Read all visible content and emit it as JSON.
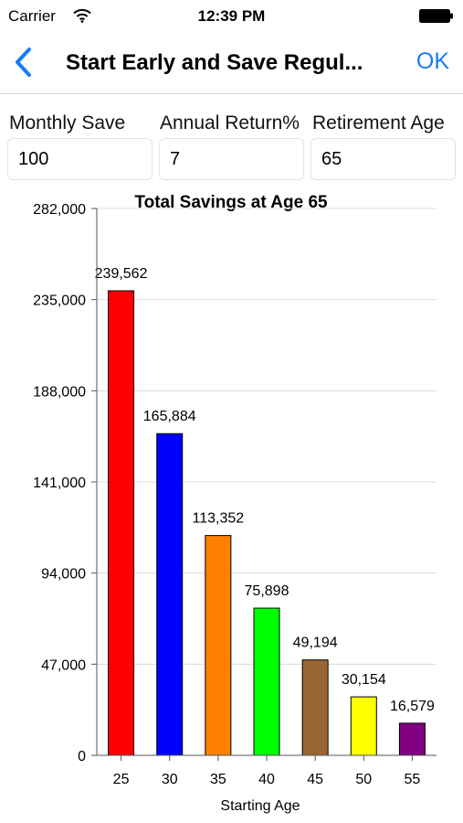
{
  "status_bar": {
    "carrier": "Carrier",
    "time": "12:39 PM"
  },
  "nav": {
    "title": "Start Early and Save Regul...",
    "ok_label": "OK"
  },
  "inputs": [
    {
      "label": "Monthly Save",
      "value": "100"
    },
    {
      "label": "Annual Return%",
      "value": "7"
    },
    {
      "label": "Retirement Age",
      "value": "65"
    }
  ],
  "chart_data": {
    "type": "bar",
    "title": "Total Savings at Age 65",
    "xlabel": "Starting Age",
    "ylabel": "",
    "categories": [
      "25",
      "30",
      "35",
      "40",
      "45",
      "50",
      "55"
    ],
    "values": [
      239562,
      165884,
      113352,
      75898,
      49194,
      30154,
      16579
    ],
    "value_labels": [
      "239,562",
      "165,884",
      "113,352",
      "75,898",
      "49,194",
      "30,154",
      "16,579"
    ],
    "colors": [
      "#ff0000",
      "#0000ff",
      "#ff8000",
      "#00ff00",
      "#996633",
      "#ffff00",
      "#800080"
    ],
    "ylim": [
      0,
      282000
    ],
    "yticks": [
      0,
      47000,
      94000,
      141000,
      188000,
      235000,
      282000
    ],
    "ytick_labels": [
      "0",
      "47,000",
      "94,000",
      "141,000",
      "188,000",
      "235,000",
      "282,000"
    ],
    "grid": true,
    "legend": "none"
  }
}
